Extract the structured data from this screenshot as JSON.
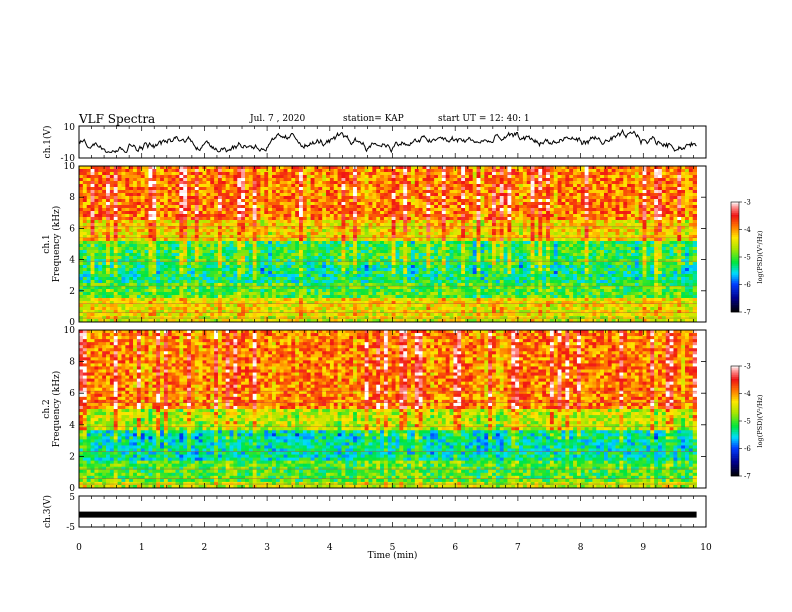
{
  "header": {
    "title": "VLF Spectra",
    "date": "Jul. 7 , 2020",
    "station": "station= KAP",
    "start": "start UT =  12: 40: 1"
  },
  "chart_data": [
    {
      "type": "line",
      "panel": "ch1-waveform",
      "ylabel": "ch.1(V)",
      "ylim": [
        -10,
        10
      ],
      "xlim": [
        0,
        10
      ],
      "tick_labels": [
        "10",
        "-10"
      ],
      "description_series": "noisy waveform fluctuating roughly between -6 and 8 V",
      "series_color": "#000000"
    },
    {
      "type": "heatmap",
      "panel": "ch1-spectrogram",
      "ylabel_line1": "ch.1",
      "ylabel_line2": "Frequency (kHz)",
      "ylim": [
        0,
        10
      ],
      "xlim": [
        0,
        10
      ],
      "y_ticks": [
        "0",
        "2",
        "4",
        "6",
        "8",
        "10"
      ],
      "colorbar_label": "log(PSD)(V²/Hz)",
      "colorbar_range": [
        -7,
        -3
      ],
      "colorbar_ticks": [
        "-3",
        "-4",
        "-5",
        "-6",
        "-7"
      ],
      "bands": [
        {
          "from": 0.0,
          "to": 0.4,
          "level": -4.5
        },
        {
          "from": 0.4,
          "to": 1.5,
          "level": -4.4
        },
        {
          "from": 1.5,
          "to": 2.5,
          "level": -5.0
        },
        {
          "from": 2.5,
          "to": 3.6,
          "level": -5.3
        },
        {
          "from": 3.6,
          "to": 5.2,
          "level": -5.1
        },
        {
          "from": 5.2,
          "to": 6.5,
          "level": -4.3
        },
        {
          "from": 6.5,
          "to": 10.0,
          "level": -3.9
        }
      ]
    },
    {
      "type": "heatmap",
      "panel": "ch2-spectrogram",
      "ylabel_line1": "ch.2",
      "ylabel_line2": "Frequency (kHz)",
      "ylim": [
        0,
        10
      ],
      "xlim": [
        0,
        10
      ],
      "y_ticks": [
        "0",
        "2",
        "4",
        "6",
        "8",
        "10"
      ],
      "colorbar_label": "log(PSD)(V²/Hz)",
      "colorbar_range": [
        -7,
        -3
      ],
      "colorbar_ticks": [
        "-3",
        "-4",
        "-5",
        "-6",
        "-7"
      ],
      "bands": [
        {
          "from": 0.0,
          "to": 0.4,
          "level": -4.6
        },
        {
          "from": 0.4,
          "to": 1.8,
          "level": -5.0
        },
        {
          "from": 1.8,
          "to": 3.6,
          "level": -5.4
        },
        {
          "from": 3.6,
          "to": 5.0,
          "level": -4.6
        },
        {
          "from": 5.0,
          "to": 10.0,
          "level": -3.9
        }
      ]
    },
    {
      "type": "line",
      "panel": "ch3-waveform",
      "ylabel": "ch.3(V)",
      "ylim": [
        -5,
        5
      ],
      "xlim": [
        0,
        10
      ],
      "tick_labels": [
        "5",
        "-5"
      ],
      "constant_value": -1,
      "series_color": "#000000"
    }
  ],
  "x_axis": {
    "label": "Time (min)",
    "ticks": [
      "0",
      "1",
      "2",
      "3",
      "4",
      "5",
      "6",
      "7",
      "8",
      "9",
      "10"
    ],
    "data_end": 9.85
  }
}
